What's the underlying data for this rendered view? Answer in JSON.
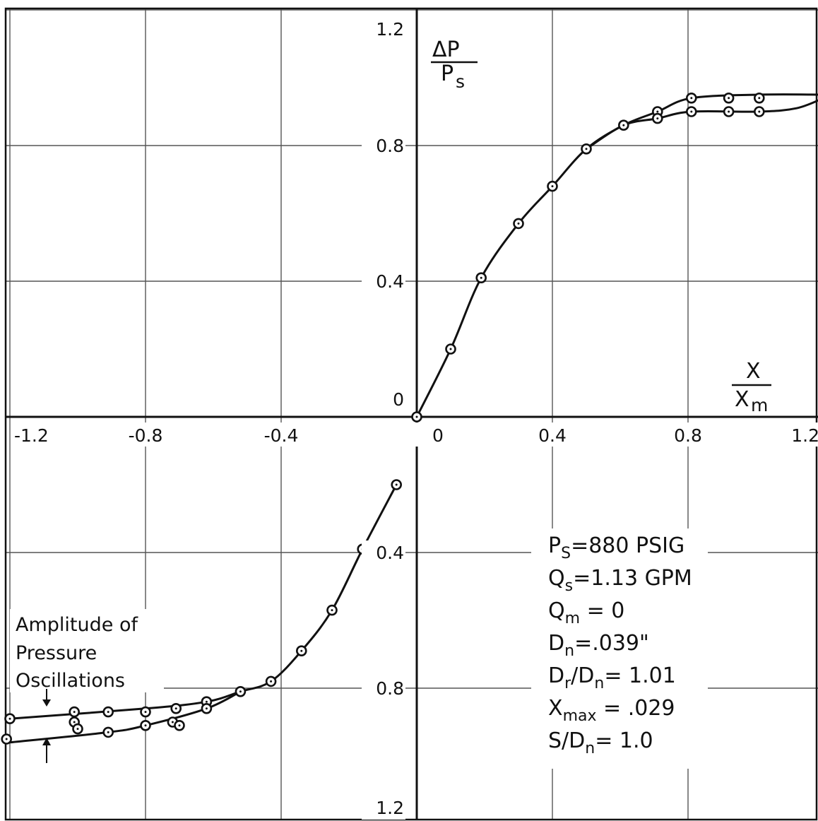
{
  "chart_data": {
    "type": "scatter",
    "title": "",
    "xlabel": {
      "num": "X",
      "den": "X",
      "den_sub": "m"
    },
    "ylabel": {
      "num": "ΔP",
      "den": "P",
      "den_sub": "s"
    },
    "xlim": [
      -1.2,
      1.2
    ],
    "ylim": [
      -1.2,
      1.2
    ],
    "grid": true,
    "x_ticks": [
      {
        "value": -1.2,
        "label": "-1.2"
      },
      {
        "value": -0.8,
        "label": "-0.8"
      },
      {
        "value": -0.4,
        "label": "-0.4"
      },
      {
        "value": 0,
        "label": "0"
      },
      {
        "value": 0.4,
        "label": "0.4"
      },
      {
        "value": 0.8,
        "label": "0.8"
      },
      {
        "value": 1.2,
        "label": "1.2"
      }
    ],
    "y_ticks": [
      {
        "value": 1.2,
        "label": "1.2"
      },
      {
        "value": 0.8,
        "label": "0.8"
      },
      {
        "value": 0.4,
        "label": "0.4"
      },
      {
        "value": 0,
        "label": "0"
      },
      {
        "value": -0.4,
        "label": "0.4"
      },
      {
        "value": -0.8,
        "label": "0.8"
      },
      {
        "value": -1.2,
        "label": "1.2"
      }
    ],
    "series": [
      {
        "points": [
          [
            -0.06,
            -0.2
          ],
          [
            -0.16,
            -0.39
          ],
          [
            -0.25,
            -0.57
          ],
          [
            -0.34,
            -0.69
          ],
          [
            -0.43,
            -0.78
          ],
          [
            -0.52,
            -0.81
          ],
          [
            -0.62,
            -0.84
          ],
          [
            -0.71,
            -0.86
          ],
          [
            -0.8,
            -0.87
          ],
          [
            -0.91,
            -0.87
          ],
          [
            -1.01,
            -0.87
          ],
          [
            -1.2,
            -0.89
          ]
        ],
        "curve": [
          [
            -0.06,
            -0.2
          ],
          [
            -0.16,
            -0.39
          ],
          [
            -0.25,
            -0.57
          ],
          [
            -0.34,
            -0.69
          ],
          [
            -0.43,
            -0.78
          ],
          [
            -0.52,
            -0.81
          ],
          [
            -0.62,
            -0.84
          ],
          [
            -0.8,
            -0.86
          ],
          [
            -1.2,
            -0.89
          ]
        ]
      },
      {
        "points": [
          [
            -0.62,
            -0.86
          ],
          [
            -0.72,
            -0.9
          ],
          [
            -0.8,
            -0.91
          ],
          [
            -0.91,
            -0.93
          ],
          [
            -1.01,
            -0.9
          ],
          [
            -1.21,
            -0.95
          ]
        ],
        "curve": [
          [
            -0.52,
            -0.81
          ],
          [
            -0.62,
            -0.86
          ],
          [
            -0.8,
            -0.91
          ],
          [
            -0.91,
            -0.93
          ],
          [
            -1.2,
            -0.96
          ]
        ]
      },
      {
        "points": [
          [
            0,
            0
          ],
          [
            0.1,
            0.2
          ],
          [
            0.19,
            0.41
          ],
          [
            0.3,
            0.57
          ],
          [
            0.4,
            0.68
          ],
          [
            0.5,
            0.79
          ],
          [
            0.61,
            0.86
          ],
          [
            0.71,
            0.9
          ],
          [
            0.81,
            0.94
          ],
          [
            0.92,
            0.94
          ],
          [
            1.01,
            0.94
          ]
        ],
        "curve": [
          [
            0,
            0
          ],
          [
            0.1,
            0.2
          ],
          [
            0.19,
            0.41
          ],
          [
            0.3,
            0.57
          ],
          [
            0.4,
            0.68
          ],
          [
            0.5,
            0.79
          ],
          [
            0.61,
            0.86
          ],
          [
            0.71,
            0.9
          ],
          [
            0.81,
            0.94
          ],
          [
            1.01,
            0.95
          ],
          [
            1.2,
            0.95
          ]
        ]
      },
      {
        "points": [
          [
            0.71,
            0.88
          ],
          [
            0.81,
            0.9
          ],
          [
            0.92,
            0.9
          ],
          [
            1.01,
            0.9
          ]
        ],
        "curve": [
          [
            0.5,
            0.79
          ],
          [
            0.61,
            0.86
          ],
          [
            0.71,
            0.88
          ],
          [
            0.81,
            0.9
          ],
          [
            1.01,
            0.9
          ],
          [
            1.12,
            0.91
          ],
          [
            1.2,
            0.94
          ]
        ]
      }
    ],
    "stray_points": [
      [
        -1.0,
        -0.92
      ],
      [
        -0.7,
        -0.91
      ]
    ],
    "conditions": [
      {
        "main": "P",
        "sub": "S",
        "rest": "=880 PSIG"
      },
      {
        "main": "Q",
        "sub": "s",
        "rest": "=1.13 GPM"
      },
      {
        "main": "Q",
        "sub": "m",
        "rest": " = 0"
      },
      {
        "main": "D",
        "sub": "n",
        "rest": "=.039\""
      },
      {
        "main": "D",
        "sub": "r",
        "rest": "/D",
        "sub2": "n",
        "rest2": "= 1.01"
      },
      {
        "main": "X",
        "sub": "max",
        "rest": " = .029"
      },
      {
        "main": "S/D",
        "sub": "n",
        "rest": "= 1.0"
      }
    ],
    "annotation": [
      "Amplitude  of",
      "Pressure",
      "Oscillations"
    ]
  }
}
